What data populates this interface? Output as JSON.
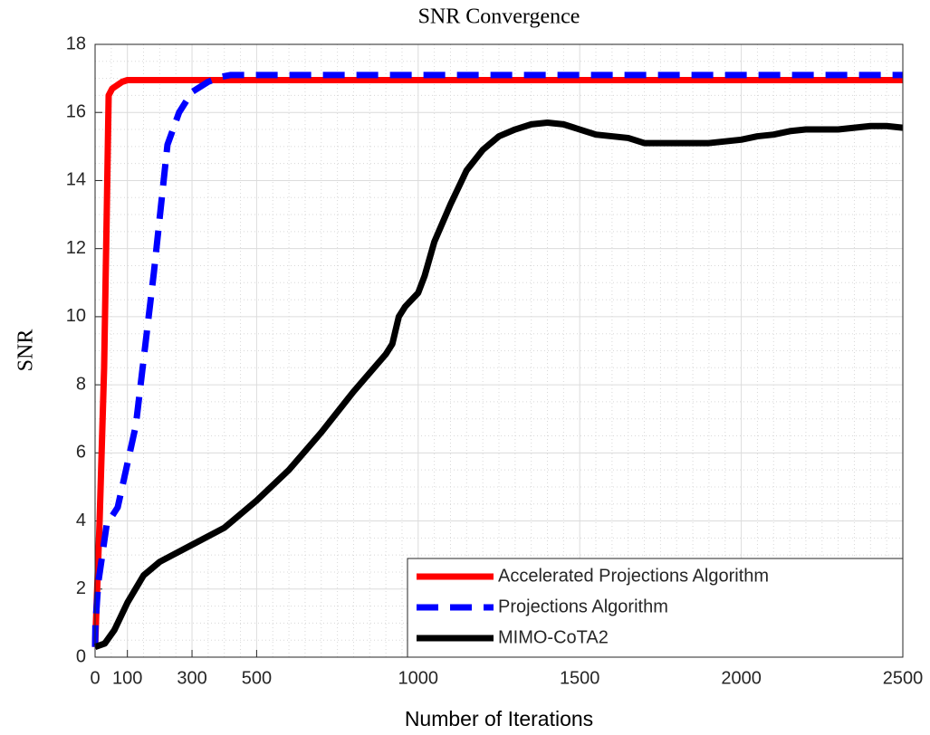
{
  "chart_data": {
    "type": "line",
    "title": "SNR Convergence",
    "xlabel": "Number of Iterations",
    "ylabel": "SNR",
    "xlim": [
      0,
      2500
    ],
    "xticks": [
      0,
      100,
      300,
      500,
      1000,
      1500,
      2000,
      2500
    ],
    "ylim": [
      0,
      18
    ],
    "yticks": [
      0,
      2,
      4,
      6,
      8,
      10,
      12,
      14,
      16,
      18
    ],
    "grid": true,
    "minor_grid": true,
    "legend": "lower right",
    "series": [
      {
        "name": "Accelerated Projections Algorithm",
        "color": "#ff0000",
        "style": "solid",
        "x": [
          0,
          14,
          28,
          36,
          42,
          53,
          84,
          100,
          2500
        ],
        "values": [
          0.3,
          4,
          8.5,
          13,
          16.5,
          16.7,
          16.9,
          16.95,
          16.95
        ]
      },
      {
        "name": "Projections Algorithm",
        "color": "#0000ff",
        "style": "dashed",
        "x": [
          0,
          1,
          10,
          36,
          70,
          126,
          182,
          224,
          260,
          300,
          350,
          392,
          420,
          2500
        ],
        "values": [
          0.3,
          0.96,
          2.2,
          3.9,
          4.4,
          6.8,
          11.3,
          15.05,
          16.0,
          16.6,
          16.9,
          17.05,
          17.1,
          17.1
        ]
      },
      {
        "name": "MIMO-CoTA2",
        "color": "#000000",
        "style": "solid",
        "x": [
          0,
          30,
          60,
          100,
          150,
          200,
          300,
          400,
          500,
          600,
          700,
          800,
          900,
          920,
          940,
          960,
          1000,
          1020,
          1050,
          1100,
          1150,
          1200,
          1250,
          1300,
          1350,
          1400,
          1450,
          1500,
          1550,
          1600,
          1650,
          1700,
          1750,
          1800,
          1850,
          1900,
          1950,
          2000,
          2050,
          2100,
          2150,
          2200,
          2250,
          2300,
          2350,
          2400,
          2450,
          2500
        ],
        "values": [
          0.3,
          0.4,
          0.8,
          1.6,
          2.4,
          2.8,
          3.3,
          3.8,
          4.6,
          5.5,
          6.6,
          7.8,
          8.9,
          9.2,
          10.0,
          10.3,
          10.7,
          11.2,
          12.2,
          13.3,
          14.3,
          14.9,
          15.3,
          15.5,
          15.65,
          15.7,
          15.65,
          15.5,
          15.35,
          15.3,
          15.25,
          15.1,
          15.1,
          15.1,
          15.1,
          15.1,
          15.15,
          15.2,
          15.3,
          15.35,
          15.45,
          15.5,
          15.5,
          15.5,
          15.55,
          15.6,
          15.6,
          15.55
        ]
      }
    ]
  }
}
